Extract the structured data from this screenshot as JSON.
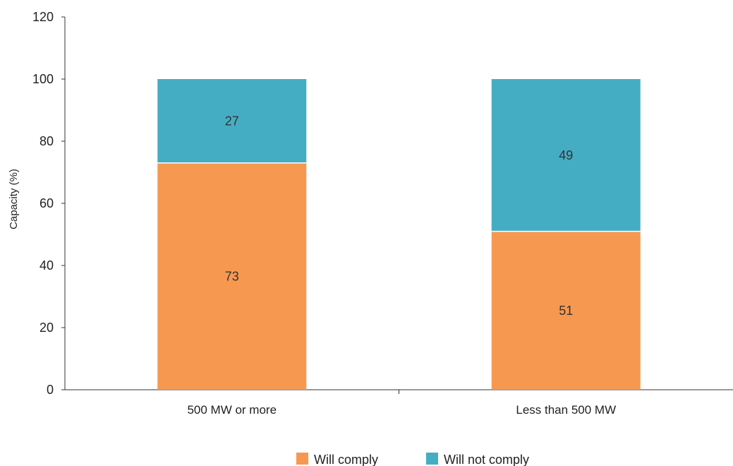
{
  "chart_data": {
    "type": "bar",
    "stacked": true,
    "categories": [
      "500 MW or more",
      "Less than 500 MW"
    ],
    "series": [
      {
        "name": "Will comply",
        "values": [
          73,
          51
        ],
        "color": "#f79850"
      },
      {
        "name": "Will not comply",
        "values": [
          27,
          49
        ],
        "color": "#45adc3"
      }
    ],
    "ylabel": "Capacity (%)",
    "xlabel": "",
    "ylim": [
      0,
      120
    ],
    "yticks": [
      0,
      20,
      40,
      60,
      80,
      100,
      120
    ],
    "grid": false,
    "legend_position": "bottom",
    "data_labels": true
  }
}
